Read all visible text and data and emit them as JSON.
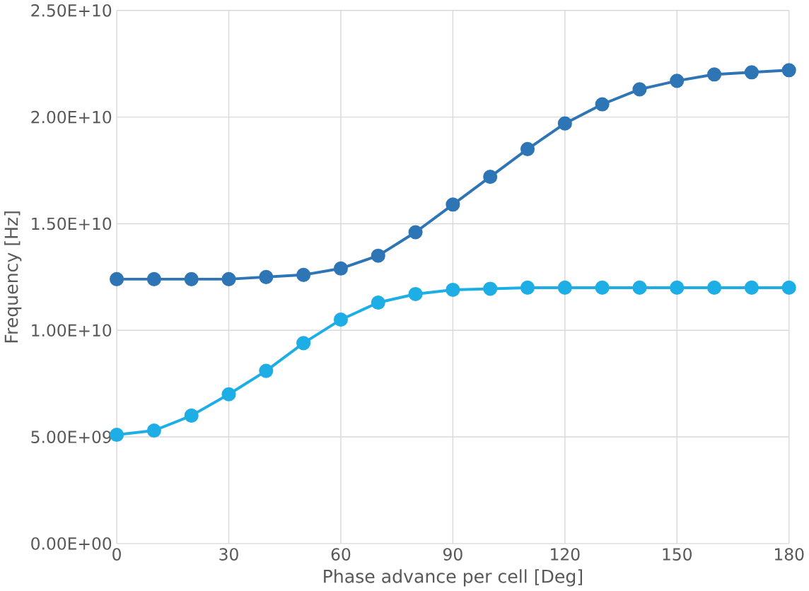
{
  "chart_data": {
    "type": "line",
    "xlabel": "Phase advance per cell [Deg]",
    "ylabel": "Frequency [Hz]",
    "x": [
      0,
      10,
      20,
      30,
      40,
      50,
      60,
      70,
      80,
      90,
      100,
      110,
      120,
      130,
      140,
      150,
      160,
      170,
      180
    ],
    "series": [
      {
        "color": "#2e75b6",
        "values": [
          12400000000.0,
          12400000000.0,
          12400000000.0,
          12400000000.0,
          12500000000.0,
          12600000000.0,
          12900000000.0,
          13500000000.0,
          14600000000.0,
          15900000000.0,
          17200000000.0,
          18500000000.0,
          19700000000.0,
          20600000000.0,
          21300000000.0,
          21700000000.0,
          22000000000.0,
          22100000000.0,
          22200000000.0
        ]
      },
      {
        "color": "#1eaee6",
        "values": [
          5100000000.0,
          5300000000.0,
          6000000000.0,
          7000000000.0,
          8100000000.0,
          9400000000.0,
          10500000000.0,
          11300000000.0,
          11700000000.0,
          11900000000.0,
          11950000000.0,
          12000000000.0,
          12000000000.0,
          12000000000.0,
          12000000000.0,
          12000000000.0,
          12000000000.0,
          12000000000.0,
          12000000000.0
        ]
      }
    ],
    "xlim": [
      0,
      180
    ],
    "xticks": [
      0,
      30,
      60,
      90,
      120,
      150,
      180
    ],
    "ylim": [
      0,
      25000000000.0
    ],
    "yticks": [
      {
        "value": 0,
        "label": "0.00E+00"
      },
      {
        "value": 5000000000.0,
        "label": "5.00E+09"
      },
      {
        "value": 10000000000.0,
        "label": "1.00E+10"
      },
      {
        "value": 15000000000.0,
        "label": "1.50E+10"
      },
      {
        "value": 20000000000.0,
        "label": "2.00E+10"
      },
      {
        "value": 25000000000.0,
        "label": "2.50E+10"
      }
    ],
    "grid": true,
    "marker": "circle",
    "line_style": "solid"
  }
}
